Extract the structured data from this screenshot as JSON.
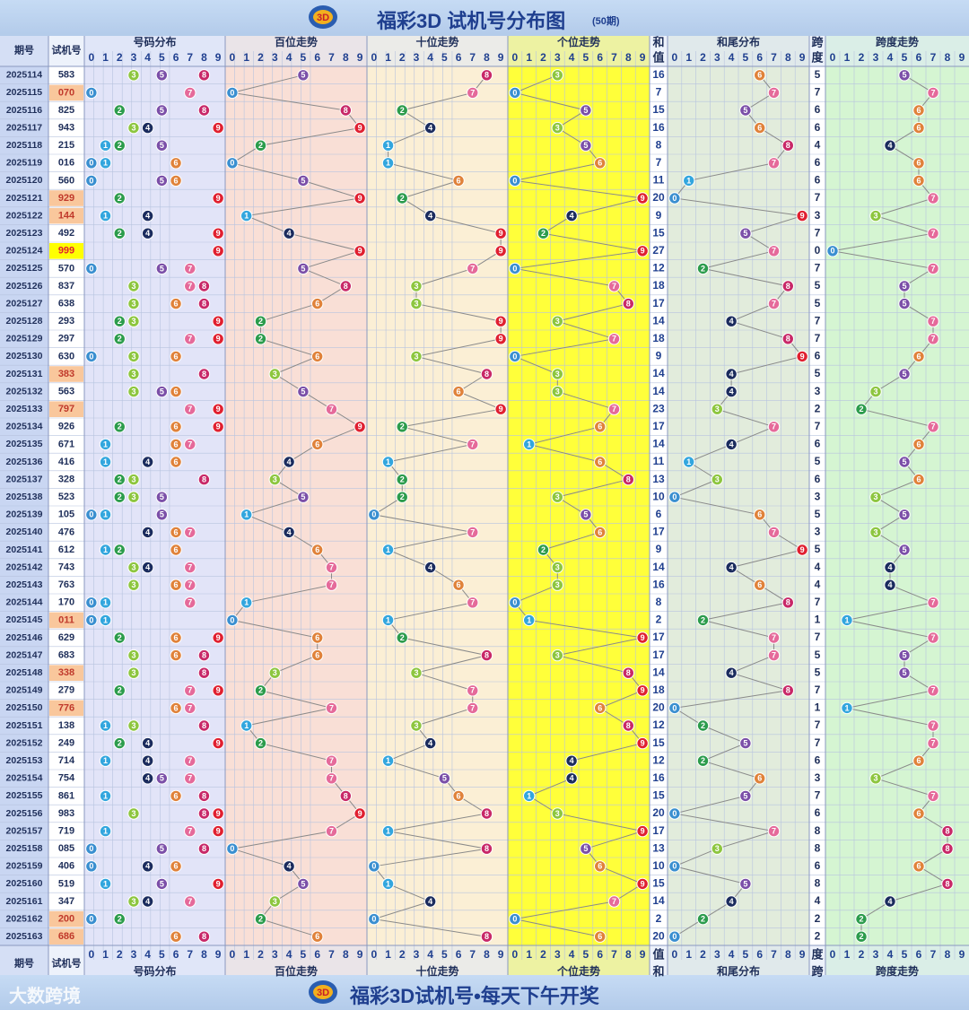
{
  "header": {
    "title": "福彩3D 试机号分布图",
    "subtitle": "(50期)",
    "footer": "福彩3D试机号•每天下午开奖",
    "brand": "大数跨境"
  },
  "columns": {
    "period": "期号",
    "number": "试机号",
    "dist": "号码分布",
    "hundreds": "百位走势",
    "tens": "十位走势",
    "units": "个位走势",
    "sum_top": "和",
    "sum_bottom": "值",
    "tail": "和尾分布",
    "span_top": "跨",
    "span_bottom": "度",
    "span_trend": "跨度走势",
    "digits": [
      "0",
      "1",
      "2",
      "3",
      "4",
      "5",
      "6",
      "7",
      "8",
      "9"
    ]
  },
  "colors": {
    "0": "#3a8fd0",
    "1": "#32a6de",
    "2": "#2c9c4c",
    "3": "#8dc63f",
    "4": "#1b2c5e",
    "5": "#7b4fa8",
    "6": "#e0823a",
    "7": "#e56a9a",
    "8": "#c82868",
    "9": "#e02030",
    "highlight_orange": "#f9c79c",
    "highlight_yellow": "#ffff00"
  },
  "chart_data": {
    "type": "table",
    "periods": [
      "2025114",
      "2025115",
      "2025116",
      "2025117",
      "2025118",
      "2025119",
      "2025120",
      "2025121",
      "2025122",
      "2025123",
      "2025124",
      "2025125",
      "2025126",
      "2025127",
      "2025128",
      "2025129",
      "2025130",
      "2025131",
      "2025132",
      "2025133",
      "2025134",
      "2025135",
      "2025136",
      "2025137",
      "2025138",
      "2025139",
      "2025140",
      "2025141",
      "2025142",
      "2025143",
      "2025144",
      "2025145",
      "2025146",
      "2025147",
      "2025148",
      "2025149",
      "2025150",
      "2025151",
      "2025152",
      "2025153",
      "2025154",
      "2025155",
      "2025156",
      "2025157",
      "2025158",
      "2025159",
      "2025160",
      "2025161",
      "2025162",
      "2025163"
    ],
    "numbers": [
      "583",
      "070",
      "825",
      "943",
      "215",
      "016",
      "560",
      "929",
      "144",
      "492",
      "999",
      "570",
      "837",
      "638",
      "293",
      "297",
      "630",
      "383",
      "563",
      "797",
      "926",
      "671",
      "416",
      "328",
      "523",
      "105",
      "476",
      "612",
      "743",
      "763",
      "170",
      "011",
      "629",
      "683",
      "338",
      "279",
      "776",
      "138",
      "249",
      "714",
      "754",
      "861",
      "983",
      "719",
      "085",
      "406",
      "519",
      "347",
      "200",
      "686"
    ],
    "sums": [
      16,
      7,
      15,
      16,
      8,
      7,
      11,
      20,
      9,
      15,
      27,
      12,
      18,
      17,
      14,
      18,
      9,
      14,
      14,
      23,
      17,
      14,
      11,
      13,
      10,
      6,
      17,
      9,
      14,
      16,
      8,
      2,
      17,
      17,
      14,
      18,
      20,
      12,
      15,
      12,
      16,
      15,
      20,
      17,
      13,
      10,
      15,
      14,
      2,
      20
    ],
    "spans": [
      5,
      7,
      6,
      6,
      4,
      6,
      6,
      7,
      3,
      7,
      0,
      7,
      5,
      5,
      7,
      7,
      6,
      5,
      3,
      2,
      7,
      6,
      5,
      6,
      3,
      5,
      3,
      5,
      4,
      4,
      7,
      1,
      7,
      5,
      5,
      7,
      1,
      7,
      7,
      6,
      3,
      7,
      6,
      8,
      8,
      6,
      8,
      4,
      2,
      2
    ]
  }
}
